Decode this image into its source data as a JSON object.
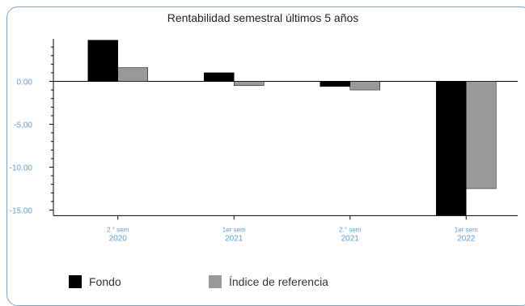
{
  "chart_data": {
    "type": "bar",
    "title": "Rentabilidad semestral últimos 5 años",
    "categories": [
      {
        "line1": "2.° sem",
        "line2": "2020"
      },
      {
        "line1": "1er sem",
        "line2": "2021"
      },
      {
        "line1": "2.° sem",
        "line2": "2021"
      },
      {
        "line1": "1er sem",
        "line2": "2022"
      }
    ],
    "series": [
      {
        "name": "Fondo",
        "color": "#000000",
        "values": [
          4.8,
          1.0,
          -0.6,
          -15.6
        ]
      },
      {
        "name": "Índice de referencia",
        "color": "#999999",
        "values": [
          1.6,
          -0.5,
          -1.0,
          -12.5
        ]
      }
    ],
    "yticks": [
      "0.00",
      "-5.00",
      "-10.00",
      "-15.00"
    ],
    "ylim": [
      -15.6,
      5.0
    ],
    "grid": false,
    "legend_position": "bottom"
  }
}
